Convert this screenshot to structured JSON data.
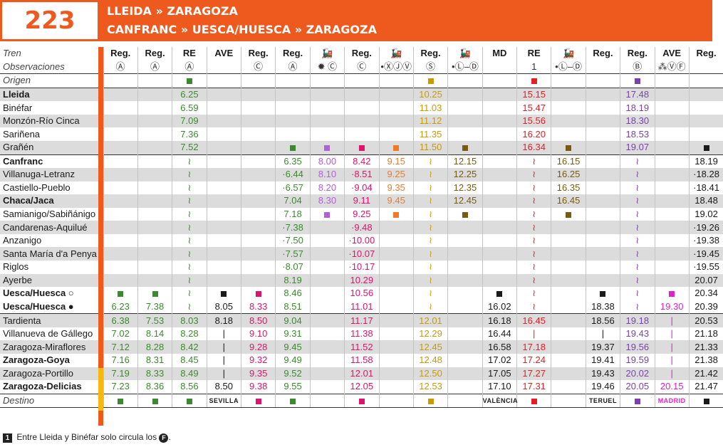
{
  "header": {
    "line_number": "223",
    "route_line_1": "LLEIDA » ZARAGOZA",
    "route_line_2": "CANFRANC » UESCA/HUESCA » ZARAGOZA"
  },
  "labels": {
    "tren": "Tren",
    "observaciones": "Observaciones",
    "origen": "Origen",
    "destino": "Destino"
  },
  "colors": {
    "green": "#3c8a2e",
    "lilac": "#b160d8",
    "pink": "#e0136c",
    "orange": "#ee7a26",
    "gold": "#c79a0a",
    "brown": "#7a5a12",
    "red": "#e31e24",
    "purple": "#7a3fb0",
    "magenta": "#e020c8",
    "black": "#1a1a1a",
    "header_orange": "#ee5a1d",
    "yellow": "#f5b80f"
  },
  "columns": [
    {
      "train": "Reg.",
      "obs": "Ⓐ",
      "color": "green",
      "origin": "",
      "dest": "■"
    },
    {
      "train": "Reg.",
      "obs": "Ⓐ",
      "color": "green",
      "origin": "",
      "dest": "■"
    },
    {
      "train": "RE",
      "obs": "Ⓐ",
      "color": "green",
      "origin": "■",
      "dest": "■"
    },
    {
      "train": "AVE",
      "obs": "",
      "color": "black",
      "origin": "",
      "dest": "SEVILLA"
    },
    {
      "train": "Reg.",
      "obs": "Ⓒ",
      "color": "pink",
      "origin": "",
      "dest": "■"
    },
    {
      "train": "Reg.",
      "obs": "Ⓐ",
      "color": "green",
      "origin": "",
      "dest": "■"
    },
    {
      "train": "🚂",
      "obs": "✹ Ⓒ",
      "color": "lilac",
      "origin": "",
      "dest": ""
    },
    {
      "train": "Reg.",
      "obs": "Ⓒ",
      "color": "pink",
      "origin": "",
      "dest": "■"
    },
    {
      "train": "🚂",
      "obs": "•ⓍⒿⓋ",
      "color": "orange",
      "origin": "",
      "dest": ""
    },
    {
      "train": "Reg.",
      "obs": "Ⓢ",
      "color": "gold",
      "origin": "■",
      "dest": "■"
    },
    {
      "train": "🚂",
      "obs": "•Ⓛ–Ⓓ",
      "color": "brown",
      "origin": "",
      "dest": ""
    },
    {
      "train": "MD",
      "obs": "",
      "color": "black",
      "origin": "",
      "dest": "VALÈNCIA"
    },
    {
      "train": "RE",
      "obs": "1",
      "color": "red",
      "origin": "■",
      "dest": "■"
    },
    {
      "train": "🚂",
      "obs": "•Ⓛ–Ⓓ",
      "color": "brown",
      "origin": "",
      "dest": ""
    },
    {
      "train": "Reg.",
      "obs": "",
      "color": "black",
      "origin": "",
      "dest": "TERUEL"
    },
    {
      "train": "Reg.",
      "obs": "Ⓑ",
      "color": "purple",
      "origin": "■",
      "dest": "■"
    },
    {
      "train": "AVE",
      "obs": "⁂ⓋⒻ",
      "color": "magenta",
      "origin": "",
      "dest": "MADRID"
    },
    {
      "train": "Reg.",
      "obs": "",
      "color": "black",
      "origin": "",
      "dest": "■"
    }
  ],
  "stations": [
    {
      "name": "Lleida",
      "bold": true,
      "shade": true,
      "times": [
        "",
        "",
        "6.25",
        "",
        "",
        "",
        "",
        "",
        "",
        "10.25",
        "",
        "",
        "15.15",
        "",
        "",
        "17.48",
        "",
        ""
      ]
    },
    {
      "name": "Binéfar",
      "bold": false,
      "shade": false,
      "times": [
        "",
        "",
        "6.59",
        "",
        "",
        "",
        "",
        "",
        "",
        "11.03",
        "",
        "",
        "15.47",
        "",
        "",
        "18.19",
        "",
        ""
      ]
    },
    {
      "name": "Monzón-Río Cinca",
      "bold": false,
      "shade": true,
      "times": [
        "",
        "",
        "7.09",
        "",
        "",
        "",
        "",
        "",
        "",
        "11.12",
        "",
        "",
        "15.56",
        "",
        "",
        "18.30",
        "",
        ""
      ]
    },
    {
      "name": "Sariñena",
      "bold": false,
      "shade": false,
      "times": [
        "",
        "",
        "7.36",
        "",
        "",
        "",
        "",
        "",
        "",
        "11.35",
        "",
        "",
        "16.20",
        "",
        "",
        "18.53",
        "",
        ""
      ]
    },
    {
      "name": "Grañén",
      "bold": false,
      "shade": true,
      "times": [
        "",
        "",
        "7.52",
        "",
        "",
        "■",
        "■",
        "■",
        "■",
        "11.50",
        "■",
        "",
        "16.34",
        "■",
        "",
        "19.07",
        "",
        "■"
      ]
    },
    {
      "name": "Canfranc",
      "bold": true,
      "shade": false,
      "times": [
        "",
        "",
        "≀",
        "",
        "",
        "6.35",
        "8.00",
        "8.42",
        "9.15",
        "≀",
        "12.15",
        "",
        "≀",
        "16.15",
        "",
        "≀",
        "",
        "18.19"
      ]
    },
    {
      "name": "Villanuga-Letranz",
      "bold": false,
      "shade": true,
      "times": [
        "",
        "",
        "≀",
        "",
        "",
        "·6.44",
        "8.10",
        "·8.51",
        "9.25",
        "≀",
        "12.25",
        "",
        "≀",
        "16.25",
        "",
        "≀",
        "",
        "·18.28"
      ]
    },
    {
      "name": "Castiello-Pueblo",
      "bold": false,
      "shade": false,
      "times": [
        "",
        "",
        "≀",
        "",
        "",
        "·6.57",
        "8.20",
        "·9.04",
        "9.35",
        "≀",
        "12.35",
        "",
        "≀",
        "16.35",
        "",
        "≀",
        "",
        "·18.41"
      ]
    },
    {
      "name": "Chaca/Jaca",
      "bold": true,
      "shade": true,
      "times": [
        "",
        "",
        "≀",
        "",
        "",
        "7.04",
        "8.30",
        "9.11",
        "9.45",
        "≀",
        "12.45",
        "",
        "≀",
        "16.45",
        "",
        "≀",
        "",
        "18.48"
      ]
    },
    {
      "name": "Samianigo/Sabiñánigo",
      "bold": false,
      "shade": false,
      "times": [
        "",
        "",
        "≀",
        "",
        "",
        "7.18",
        "■",
        "9.25",
        "■",
        "≀",
        "■",
        "",
        "≀",
        "■",
        "",
        "≀",
        "",
        "19.02"
      ]
    },
    {
      "name": "Candarenas-Aquilué",
      "bold": false,
      "shade": true,
      "times": [
        "",
        "",
        "≀",
        "",
        "",
        "·7.38",
        "",
        "·9.48",
        "",
        "≀",
        "",
        "",
        "≀",
        "",
        "",
        "≀",
        "",
        "·19.26"
      ]
    },
    {
      "name": "Anzanigo",
      "bold": false,
      "shade": false,
      "times": [
        "",
        "",
        "≀",
        "",
        "",
        "·7.50",
        "",
        "·10.00",
        "",
        "≀",
        "",
        "",
        "≀",
        "",
        "",
        "≀",
        "",
        "·19.38"
      ]
    },
    {
      "name": "Santa María d'a Penya",
      "bold": false,
      "shade": true,
      "times": [
        "",
        "",
        "≀",
        "",
        "",
        "·7.57",
        "",
        "·10.07",
        "",
        "≀",
        "",
        "",
        "≀",
        "",
        "",
        "≀",
        "",
        "·19.45"
      ]
    },
    {
      "name": "Riglos",
      "bold": false,
      "shade": false,
      "times": [
        "",
        "",
        "≀",
        "",
        "",
        "·8.07",
        "",
        "·10.17",
        "",
        "≀",
        "",
        "",
        "≀",
        "",
        "",
        "≀",
        "",
        "·19.55"
      ]
    },
    {
      "name": "Ayerbe",
      "bold": false,
      "shade": true,
      "times": [
        "",
        "",
        "≀",
        "",
        "",
        "8.19",
        "",
        "10.29",
        "",
        "≀",
        "",
        "",
        "≀",
        "",
        "",
        "≀",
        "",
        "20.07"
      ]
    },
    {
      "name": "Uesca/Huesca ○",
      "bold": true,
      "shade": false,
      "times": [
        "■",
        "■",
        "≀",
        "■",
        "■",
        "8.46",
        "",
        "10.56",
        "",
        "≀",
        "",
        "■",
        "≀",
        "",
        "■",
        "≀",
        "■",
        "20.34"
      ]
    },
    {
      "name": "Uesca/Huesca ●",
      "bold": true,
      "shade": false,
      "times": [
        "6.23",
        "7.38",
        "≀",
        "8.05",
        "8.33",
        "8.51",
        "",
        "11.01",
        "",
        "≀",
        "",
        "16.02",
        "≀",
        "",
        "18.38",
        "≀",
        "19.30",
        "20.39"
      ]
    },
    {
      "name": "Tardienta",
      "bold": false,
      "shade": true,
      "times": [
        "6.38",
        "7.53",
        "8.03",
        "8.18",
        "8.50",
        "9.04",
        "",
        "11.17",
        "",
        "12.01",
        "",
        "16.18",
        "16.45",
        "",
        "18.56",
        "19.18",
        "|",
        "20.53"
      ]
    },
    {
      "name": "Villanueva de Gállego",
      "bold": false,
      "shade": false,
      "times": [
        "7.02",
        "8.14",
        "8.28",
        "|",
        "9.10",
        "9.31",
        "",
        "11.38",
        "",
        "12.29",
        "",
        "16.44",
        "|",
        "",
        "|",
        "19.43",
        "|",
        "21.18"
      ]
    },
    {
      "name": "Zaragoza-Miraflores",
      "bold": false,
      "shade": true,
      "times": [
        "7.12",
        "8.28",
        "8.42",
        "|",
        "9.28",
        "9.45",
        "",
        "11.52",
        "",
        "12.45",
        "",
        "16.58",
        "17.18",
        "",
        "19.37",
        "19.56",
        "|",
        "21.33"
      ]
    },
    {
      "name": "Zaragoza-Goya",
      "bold": true,
      "shade": false,
      "times": [
        "7.16",
        "8.31",
        "8.45",
        "|",
        "9.32",
        "9.49",
        "",
        "11.58",
        "",
        "12.48",
        "",
        "17.02",
        "17.24",
        "",
        "19.41",
        "19.59",
        "|",
        "21.38"
      ]
    },
    {
      "name": "Zaragoza-Portillo",
      "bold": false,
      "shade": true,
      "times": [
        "7.19",
        "8.33",
        "8.49",
        "|",
        "9.35",
        "9.52",
        "",
        "12.01",
        "",
        "12.50",
        "",
        "17.05",
        "17.27",
        "",
        "19.43",
        "20.02",
        "|",
        "21.42"
      ]
    },
    {
      "name": "Zaragoza-Delicias",
      "bold": true,
      "shade": false,
      "times": [
        "7.23",
        "8.36",
        "8.56",
        "8.50",
        "9.38",
        "9.55",
        "",
        "12.05",
        "",
        "12.53",
        "",
        "17.10",
        "17.31",
        "",
        "19.46",
        "20.05",
        "20.15",
        "21.47"
      ]
    }
  ],
  "footnote": {
    "marker": "1",
    "text": "Entre Lleida y Binéfar solo circula los",
    "day": "F",
    "end": "."
  }
}
